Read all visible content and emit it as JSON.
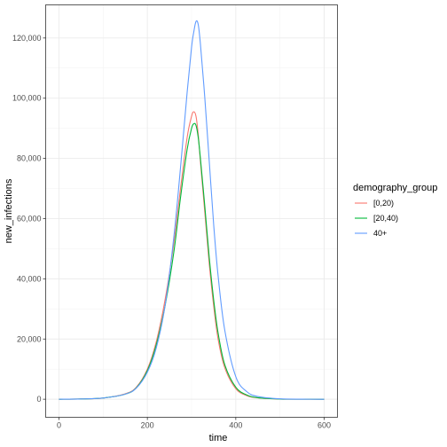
{
  "chart_data": {
    "type": "line",
    "xlabel": "time",
    "ylabel": "new_infections",
    "xlim": [
      -30,
      630
    ],
    "ylim": [
      -6000,
      131000
    ],
    "x_ticks": [
      0,
      200,
      400,
      600
    ],
    "x_tick_labels": [
      "0",
      "200",
      "400",
      "600"
    ],
    "y_ticks": [
      0,
      20000,
      40000,
      60000,
      80000,
      100000,
      120000
    ],
    "y_tick_labels": [
      "0",
      "20,000",
      "40,000",
      "60,000",
      "80,000",
      "100,000",
      "120,000"
    ],
    "grid": true,
    "legend": {
      "title": "demography_group",
      "position": "right"
    },
    "x": [
      0,
      50,
      100,
      150,
      175,
      200,
      220,
      240,
      260,
      275,
      290,
      300,
      305,
      310,
      315,
      320,
      330,
      340,
      350,
      360,
      375,
      400,
      425,
      450,
      500,
      550,
      600
    ],
    "series": [
      {
        "name": "[0,20)",
        "color": "#F8766D",
        "values": [
          0,
          100,
          400,
          1800,
          4000,
          10000,
          19000,
          33000,
          52000,
          70000,
          87000,
          94000,
          95500,
          94000,
          88000,
          79000,
          62000,
          45000,
          31000,
          20000,
          10500,
          3500,
          1200,
          450,
          60,
          10,
          0
        ]
      },
      {
        "name": "[20,40)",
        "color": "#00BA38",
        "values": [
          0,
          100,
          400,
          1700,
          3800,
          9500,
          18000,
          31000,
          49000,
          67000,
          83000,
          90000,
          91500,
          91000,
          87000,
          80000,
          64000,
          47000,
          33000,
          22000,
          11500,
          4000,
          1400,
          500,
          70,
          10,
          0
        ]
      },
      {
        "name": "40+",
        "color": "#619CFF",
        "values": [
          0,
          100,
          400,
          1700,
          3700,
          9000,
          17000,
          31000,
          54000,
          77000,
          102000,
          117000,
          122000,
          125500,
          124500,
          118000,
          100000,
          79000,
          58000,
          41000,
          23000,
          7500,
          2500,
          900,
          120,
          20,
          0
        ]
      }
    ]
  }
}
